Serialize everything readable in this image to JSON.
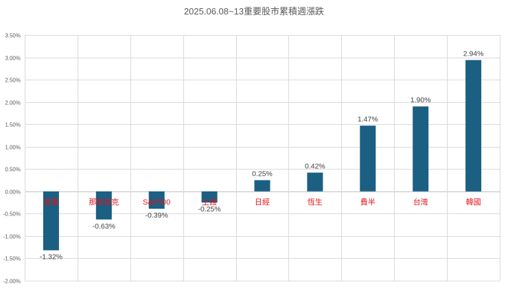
{
  "chart_data": {
    "type": "bar",
    "title": "2025.06.08~13重要股市累積週漲跌",
    "xlabel": "",
    "ylabel": "",
    "ylim": [
      -0.02,
      0.035
    ],
    "ytick_step": 0.005,
    "grid": true,
    "legend": "none",
    "categories": [
      "道瓊",
      "那斯達克",
      "S&P500",
      "上證",
      "日經",
      "恆生",
      "費半",
      "台灣",
      "韓國"
    ],
    "values": [
      -0.0132,
      -0.0063,
      -0.0039,
      -0.0025,
      0.0025,
      0.0042,
      0.0147,
      0.019,
      0.0294
    ],
    "data_labels": [
      "-1.32%",
      "-0.63%",
      "-0.39%",
      "-0.25%",
      "0.25%",
      "0.42%",
      "1.47%",
      "1.90%",
      "2.94%"
    ],
    "ytick_labels": [
      "3.50%",
      "3.00%",
      "2.50%",
      "2.00%",
      "1.50%",
      "1.00%",
      "0.50%",
      "0.00%",
      "-0.50%",
      "-1.00%",
      "-1.50%",
      "-2.00%"
    ]
  },
  "colors": {
    "bar": "#1b5f82",
    "category_label": "#e0151b",
    "grid": "#d9d9d9",
    "axis": "#bfbfbf"
  }
}
